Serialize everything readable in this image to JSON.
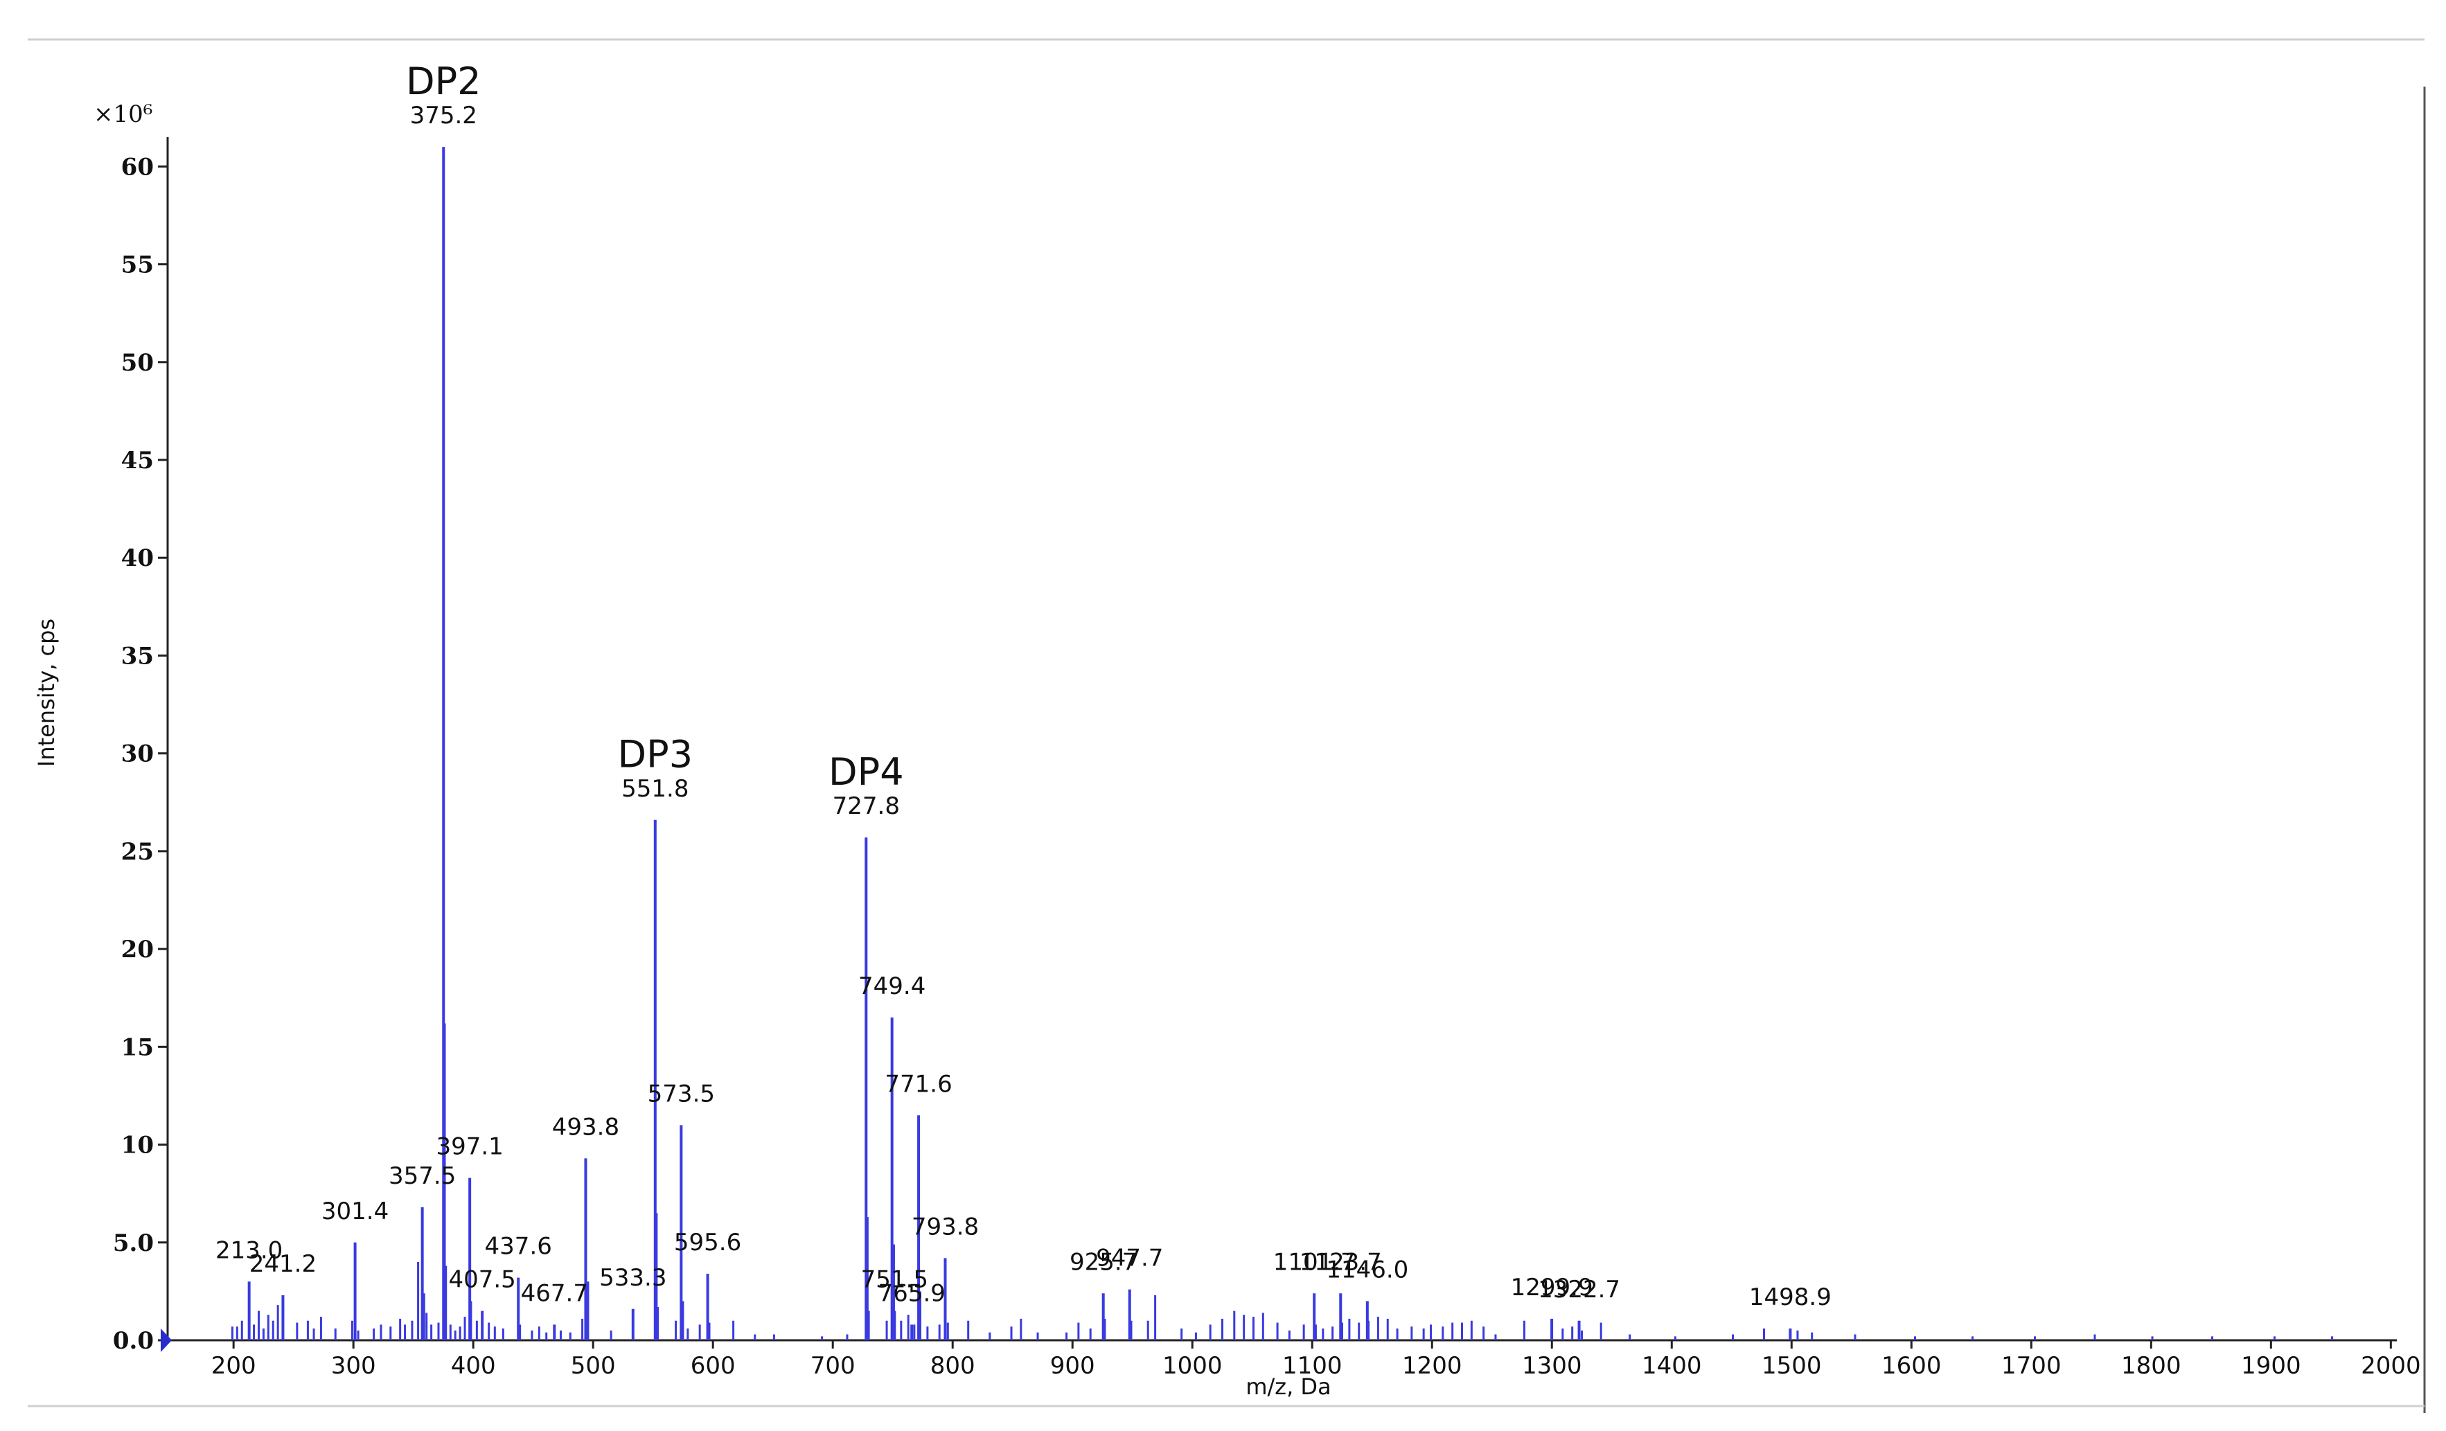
{
  "chart_data": {
    "type": "bar",
    "subtype": "mass-spectrum-stick-plot",
    "xlabel": "m/z, Da",
    "ylabel": "Intensity, cps",
    "y_multiplier_label": "×10⁶",
    "xlim": [
      145,
      2005
    ],
    "ylim": [
      0,
      61.5
    ],
    "x_ticks": [
      200,
      300,
      400,
      500,
      600,
      700,
      800,
      900,
      1000,
      1100,
      1200,
      1300,
      1400,
      1500,
      1600,
      1700,
      1800,
      1900,
      2000
    ],
    "y_ticks": [
      {
        "value": 0,
        "label": "0.0"
      },
      {
        "value": 5,
        "label": "5.0"
      },
      {
        "value": 10,
        "label": "10"
      },
      {
        "value": 15,
        "label": "15"
      },
      {
        "value": 20,
        "label": "20"
      },
      {
        "value": 25,
        "label": "25"
      },
      {
        "value": 30,
        "label": "30"
      },
      {
        "value": 35,
        "label": "35"
      },
      {
        "value": 40,
        "label": "40"
      },
      {
        "value": 45,
        "label": "45"
      },
      {
        "value": 50,
        "label": "50"
      },
      {
        "value": 55,
        "label": "55"
      },
      {
        "value": 60,
        "label": "60"
      }
    ],
    "series_color": "#3a3ae0",
    "peak_label_offset": 1.2,
    "labeled_peaks": [
      {
        "mz": 213.0,
        "intensity": 3.0,
        "label": "213.0"
      },
      {
        "mz": 241.2,
        "intensity": 2.3,
        "label": "241.2"
      },
      {
        "mz": 301.4,
        "intensity": 5.0,
        "label": "301.4"
      },
      {
        "mz": 357.5,
        "intensity": 6.8,
        "label": "357.5"
      },
      {
        "mz": 375.2,
        "intensity": 61.0,
        "label": "375.2"
      },
      {
        "mz": 397.1,
        "intensity": 8.3,
        "label": "397.1"
      },
      {
        "mz": 407.5,
        "intensity": 1.5,
        "label": "407.5"
      },
      {
        "mz": 437.6,
        "intensity": 3.2,
        "label": "437.6"
      },
      {
        "mz": 467.7,
        "intensity": 0.8,
        "label": "467.7"
      },
      {
        "mz": 493.8,
        "intensity": 9.3,
        "label": "493.8"
      },
      {
        "mz": 533.3,
        "intensity": 1.6,
        "label": "533.3"
      },
      {
        "mz": 551.8,
        "intensity": 26.6,
        "label": "551.8"
      },
      {
        "mz": 573.5,
        "intensity": 11.0,
        "label": "573.5"
      },
      {
        "mz": 595.6,
        "intensity": 3.4,
        "label": "595.6"
      },
      {
        "mz": 727.8,
        "intensity": 25.7,
        "label": "727.8"
      },
      {
        "mz": 749.4,
        "intensity": 16.5,
        "label": "749.4"
      },
      {
        "mz": 751.5,
        "intensity": 1.5,
        "label": "751.5"
      },
      {
        "mz": 765.9,
        "intensity": 0.8,
        "label": "765.9"
      },
      {
        "mz": 771.6,
        "intensity": 11.5,
        "label": "771.6"
      },
      {
        "mz": 793.8,
        "intensity": 4.2,
        "label": "793.8"
      },
      {
        "mz": 925.7,
        "intensity": 2.4,
        "label": "925.7"
      },
      {
        "mz": 947.7,
        "intensity": 2.6,
        "label": "947.7"
      },
      {
        "mz": 1101.7,
        "intensity": 2.4,
        "label": "1101.7"
      },
      {
        "mz": 1123.7,
        "intensity": 2.4,
        "label": "1123.7"
      },
      {
        "mz": 1146.0,
        "intensity": 2.0,
        "label": "1146.0"
      },
      {
        "mz": 1299.9,
        "intensity": 1.1,
        "label": "1299.9"
      },
      {
        "mz": 1322.7,
        "intensity": 1.0,
        "label": "1322.7"
      },
      {
        "mz": 1498.9,
        "intensity": 0.6,
        "label": "1498.9"
      }
    ],
    "annotations": [
      {
        "text": "DP2",
        "mz": 375.2,
        "intensity": 63.7
      },
      {
        "text": "DP3",
        "mz": 551.8,
        "intensity": 29.3
      },
      {
        "text": "DP4",
        "mz": 727.8,
        "intensity": 28.4
      }
    ],
    "minor_peaks": [
      {
        "mz": 199,
        "intensity": 0.7
      },
      {
        "mz": 203,
        "intensity": 0.7
      },
      {
        "mz": 207,
        "intensity": 1.0
      },
      {
        "mz": 217,
        "intensity": 0.8
      },
      {
        "mz": 221,
        "intensity": 1.5
      },
      {
        "mz": 225,
        "intensity": 0.6
      },
      {
        "mz": 229,
        "intensity": 1.3
      },
      {
        "mz": 233,
        "intensity": 1.0
      },
      {
        "mz": 237,
        "intensity": 1.8
      },
      {
        "mz": 253,
        "intensity": 0.9
      },
      {
        "mz": 262,
        "intensity": 1.0
      },
      {
        "mz": 267,
        "intensity": 0.6
      },
      {
        "mz": 273,
        "intensity": 1.2
      },
      {
        "mz": 285,
        "intensity": 0.6
      },
      {
        "mz": 299,
        "intensity": 1.0
      },
      {
        "mz": 304,
        "intensity": 0.5
      },
      {
        "mz": 317,
        "intensity": 0.6
      },
      {
        "mz": 323,
        "intensity": 0.8
      },
      {
        "mz": 331,
        "intensity": 0.7
      },
      {
        "mz": 339,
        "intensity": 1.1
      },
      {
        "mz": 343,
        "intensity": 0.8
      },
      {
        "mz": 349,
        "intensity": 1.0
      },
      {
        "mz": 354,
        "intensity": 4.0
      },
      {
        "mz": 359,
        "intensity": 2.4
      },
      {
        "mz": 361,
        "intensity": 1.4
      },
      {
        "mz": 365,
        "intensity": 0.8
      },
      {
        "mz": 371,
        "intensity": 0.9
      },
      {
        "mz": 376.2,
        "intensity": 16.2
      },
      {
        "mz": 377.2,
        "intensity": 3.8
      },
      {
        "mz": 381,
        "intensity": 0.8
      },
      {
        "mz": 385,
        "intensity": 0.5
      },
      {
        "mz": 389,
        "intensity": 0.7
      },
      {
        "mz": 393,
        "intensity": 1.2
      },
      {
        "mz": 398.1,
        "intensity": 2.0
      },
      {
        "mz": 403,
        "intensity": 1.0
      },
      {
        "mz": 413,
        "intensity": 0.9
      },
      {
        "mz": 418,
        "intensity": 0.7
      },
      {
        "mz": 425,
        "intensity": 0.6
      },
      {
        "mz": 439,
        "intensity": 0.8
      },
      {
        "mz": 449,
        "intensity": 0.5
      },
      {
        "mz": 455,
        "intensity": 0.7
      },
      {
        "mz": 461,
        "intensity": 0.4
      },
      {
        "mz": 473,
        "intensity": 0.5
      },
      {
        "mz": 481,
        "intensity": 0.4
      },
      {
        "mz": 491,
        "intensity": 1.1
      },
      {
        "mz": 495.8,
        "intensity": 3.0
      },
      {
        "mz": 515,
        "intensity": 0.5
      },
      {
        "mz": 553,
        "intensity": 6.5
      },
      {
        "mz": 554,
        "intensity": 1.7
      },
      {
        "mz": 569,
        "intensity": 1.0
      },
      {
        "mz": 575,
        "intensity": 2.0
      },
      {
        "mz": 579,
        "intensity": 0.6
      },
      {
        "mz": 589,
        "intensity": 0.8
      },
      {
        "mz": 597,
        "intensity": 0.9
      },
      {
        "mz": 617,
        "intensity": 1.0
      },
      {
        "mz": 635,
        "intensity": 0.3
      },
      {
        "mz": 651,
        "intensity": 0.3
      },
      {
        "mz": 691,
        "intensity": 0.2
      },
      {
        "mz": 712,
        "intensity": 0.3
      },
      {
        "mz": 729,
        "intensity": 6.3
      },
      {
        "mz": 730,
        "intensity": 1.5
      },
      {
        "mz": 745,
        "intensity": 1.0
      },
      {
        "mz": 751,
        "intensity": 4.9
      },
      {
        "mz": 757,
        "intensity": 1.0
      },
      {
        "mz": 763,
        "intensity": 1.3
      },
      {
        "mz": 768,
        "intensity": 0.8
      },
      {
        "mz": 773,
        "intensity": 2.5
      },
      {
        "mz": 779,
        "intensity": 0.7
      },
      {
        "mz": 789,
        "intensity": 0.8
      },
      {
        "mz": 796,
        "intensity": 0.9
      },
      {
        "mz": 813,
        "intensity": 1.0
      },
      {
        "mz": 831,
        "intensity": 0.4
      },
      {
        "mz": 849,
        "intensity": 0.7
      },
      {
        "mz": 857,
        "intensity": 1.1
      },
      {
        "mz": 871,
        "intensity": 0.4
      },
      {
        "mz": 895,
        "intensity": 0.4
      },
      {
        "mz": 905,
        "intensity": 0.9
      },
      {
        "mz": 915,
        "intensity": 0.6
      },
      {
        "mz": 927,
        "intensity": 1.1
      },
      {
        "mz": 949,
        "intensity": 1.0
      },
      {
        "mz": 963,
        "intensity": 1.0
      },
      {
        "mz": 969,
        "intensity": 2.3
      },
      {
        "mz": 991,
        "intensity": 0.6
      },
      {
        "mz": 1003,
        "intensity": 0.4
      },
      {
        "mz": 1015,
        "intensity": 0.8
      },
      {
        "mz": 1025,
        "intensity": 1.1
      },
      {
        "mz": 1035,
        "intensity": 1.5
      },
      {
        "mz": 1043,
        "intensity": 1.3
      },
      {
        "mz": 1051,
        "intensity": 1.2
      },
      {
        "mz": 1059,
        "intensity": 1.4
      },
      {
        "mz": 1071,
        "intensity": 0.9
      },
      {
        "mz": 1081,
        "intensity": 0.5
      },
      {
        "mz": 1093,
        "intensity": 0.8
      },
      {
        "mz": 1103,
        "intensity": 0.8
      },
      {
        "mz": 1109,
        "intensity": 0.6
      },
      {
        "mz": 1117,
        "intensity": 0.7
      },
      {
        "mz": 1125,
        "intensity": 0.9
      },
      {
        "mz": 1131,
        "intensity": 1.1
      },
      {
        "mz": 1139,
        "intensity": 0.9
      },
      {
        "mz": 1147,
        "intensity": 1.0
      },
      {
        "mz": 1155,
        "intensity": 1.2
      },
      {
        "mz": 1163,
        "intensity": 1.1
      },
      {
        "mz": 1171,
        "intensity": 0.6
      },
      {
        "mz": 1183,
        "intensity": 0.7
      },
      {
        "mz": 1193,
        "intensity": 0.6
      },
      {
        "mz": 1199,
        "intensity": 0.8
      },
      {
        "mz": 1209,
        "intensity": 0.7
      },
      {
        "mz": 1217,
        "intensity": 0.9
      },
      {
        "mz": 1225,
        "intensity": 0.9
      },
      {
        "mz": 1233,
        "intensity": 1.0
      },
      {
        "mz": 1243,
        "intensity": 0.7
      },
      {
        "mz": 1253,
        "intensity": 0.3
      },
      {
        "mz": 1277,
        "intensity": 1.0
      },
      {
        "mz": 1309,
        "intensity": 0.6
      },
      {
        "mz": 1317,
        "intensity": 0.7
      },
      {
        "mz": 1325,
        "intensity": 0.5
      },
      {
        "mz": 1341,
        "intensity": 0.9
      },
      {
        "mz": 1365,
        "intensity": 0.3
      },
      {
        "mz": 1403,
        "intensity": 0.2
      },
      {
        "mz": 1451,
        "intensity": 0.3
      },
      {
        "mz": 1477,
        "intensity": 0.6
      },
      {
        "mz": 1505,
        "intensity": 0.5
      },
      {
        "mz": 1517,
        "intensity": 0.4
      },
      {
        "mz": 1553,
        "intensity": 0.3
      },
      {
        "mz": 1603,
        "intensity": 0.2
      },
      {
        "mz": 1651,
        "intensity": 0.2
      },
      {
        "mz": 1703,
        "intensity": 0.2
      },
      {
        "mz": 1753,
        "intensity": 0.3
      },
      {
        "mz": 1801,
        "intensity": 0.2
      },
      {
        "mz": 1851,
        "intensity": 0.2
      },
      {
        "mz": 1903,
        "intensity": 0.2
      },
      {
        "mz": 1951,
        "intensity": 0.2
      }
    ]
  }
}
